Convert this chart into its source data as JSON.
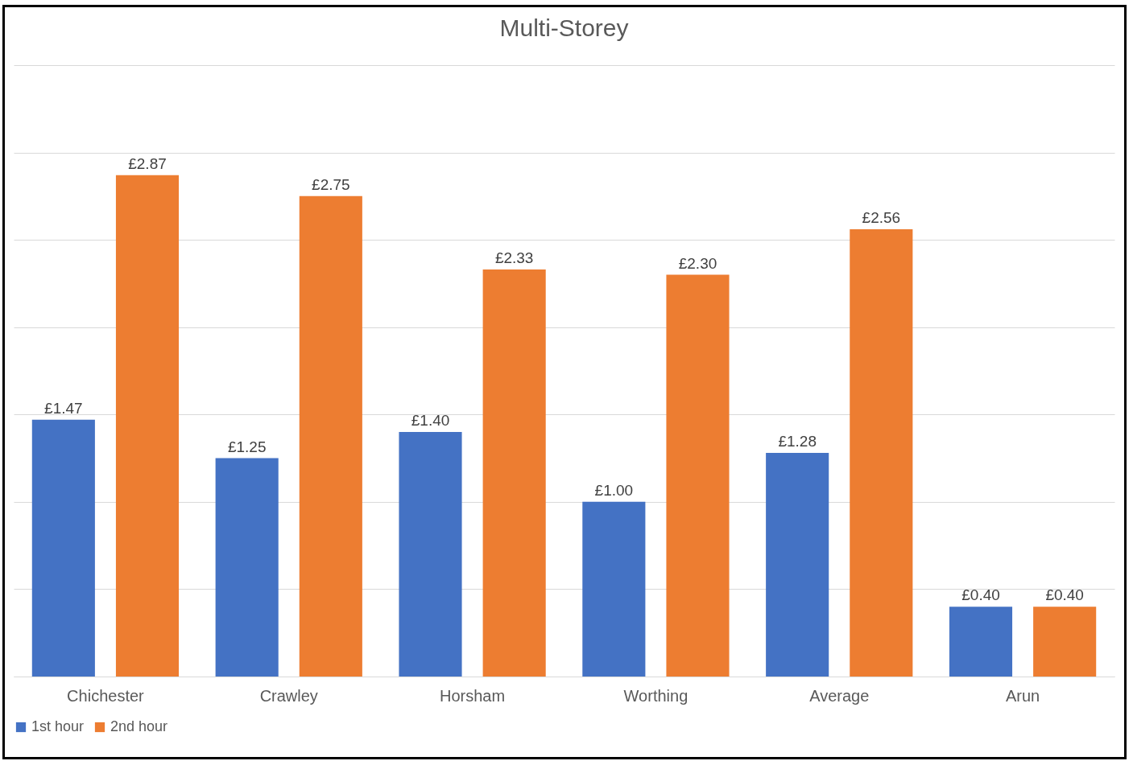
{
  "chart_data": {
    "type": "bar",
    "title": "Multi-Storey",
    "categories": [
      "Chichester",
      "Crawley",
      "Horsham",
      "Worthing",
      "Average",
      "Arun"
    ],
    "series": [
      {
        "name": "1st hour",
        "color": "#4472c4",
        "values": [
          1.47,
          1.25,
          1.4,
          1.0,
          1.28,
          0.4
        ],
        "value_labels": [
          "£1.47",
          "£1.25",
          "£1.40",
          "£1.00",
          "£1.28",
          "£0.40"
        ]
      },
      {
        "name": "2nd hour",
        "color": "#ed7d31",
        "values": [
          2.87,
          2.75,
          2.33,
          2.3,
          2.56,
          0.4
        ],
        "value_labels": [
          "£2.87",
          "£2.75",
          "£2.33",
          "£2.30",
          "£2.56",
          "£0.40"
        ]
      }
    ],
    "ylim": [
      0,
      3.5
    ],
    "yticks": [
      {
        "value": 0,
        "label": null
      },
      {
        "value": 0.5,
        "label": null
      },
      {
        "value": 1,
        "label": null
      },
      {
        "value": 1.5,
        "label": null
      },
      {
        "value": 2,
        "label": null
      },
      {
        "value": 2.5,
        "label": null
      },
      {
        "value": 3,
        "label": null
      },
      {
        "value": 3.5,
        "label": null
      }
    ],
    "grid": "y",
    "tick_labels": "x",
    "legend": "bottom"
  }
}
